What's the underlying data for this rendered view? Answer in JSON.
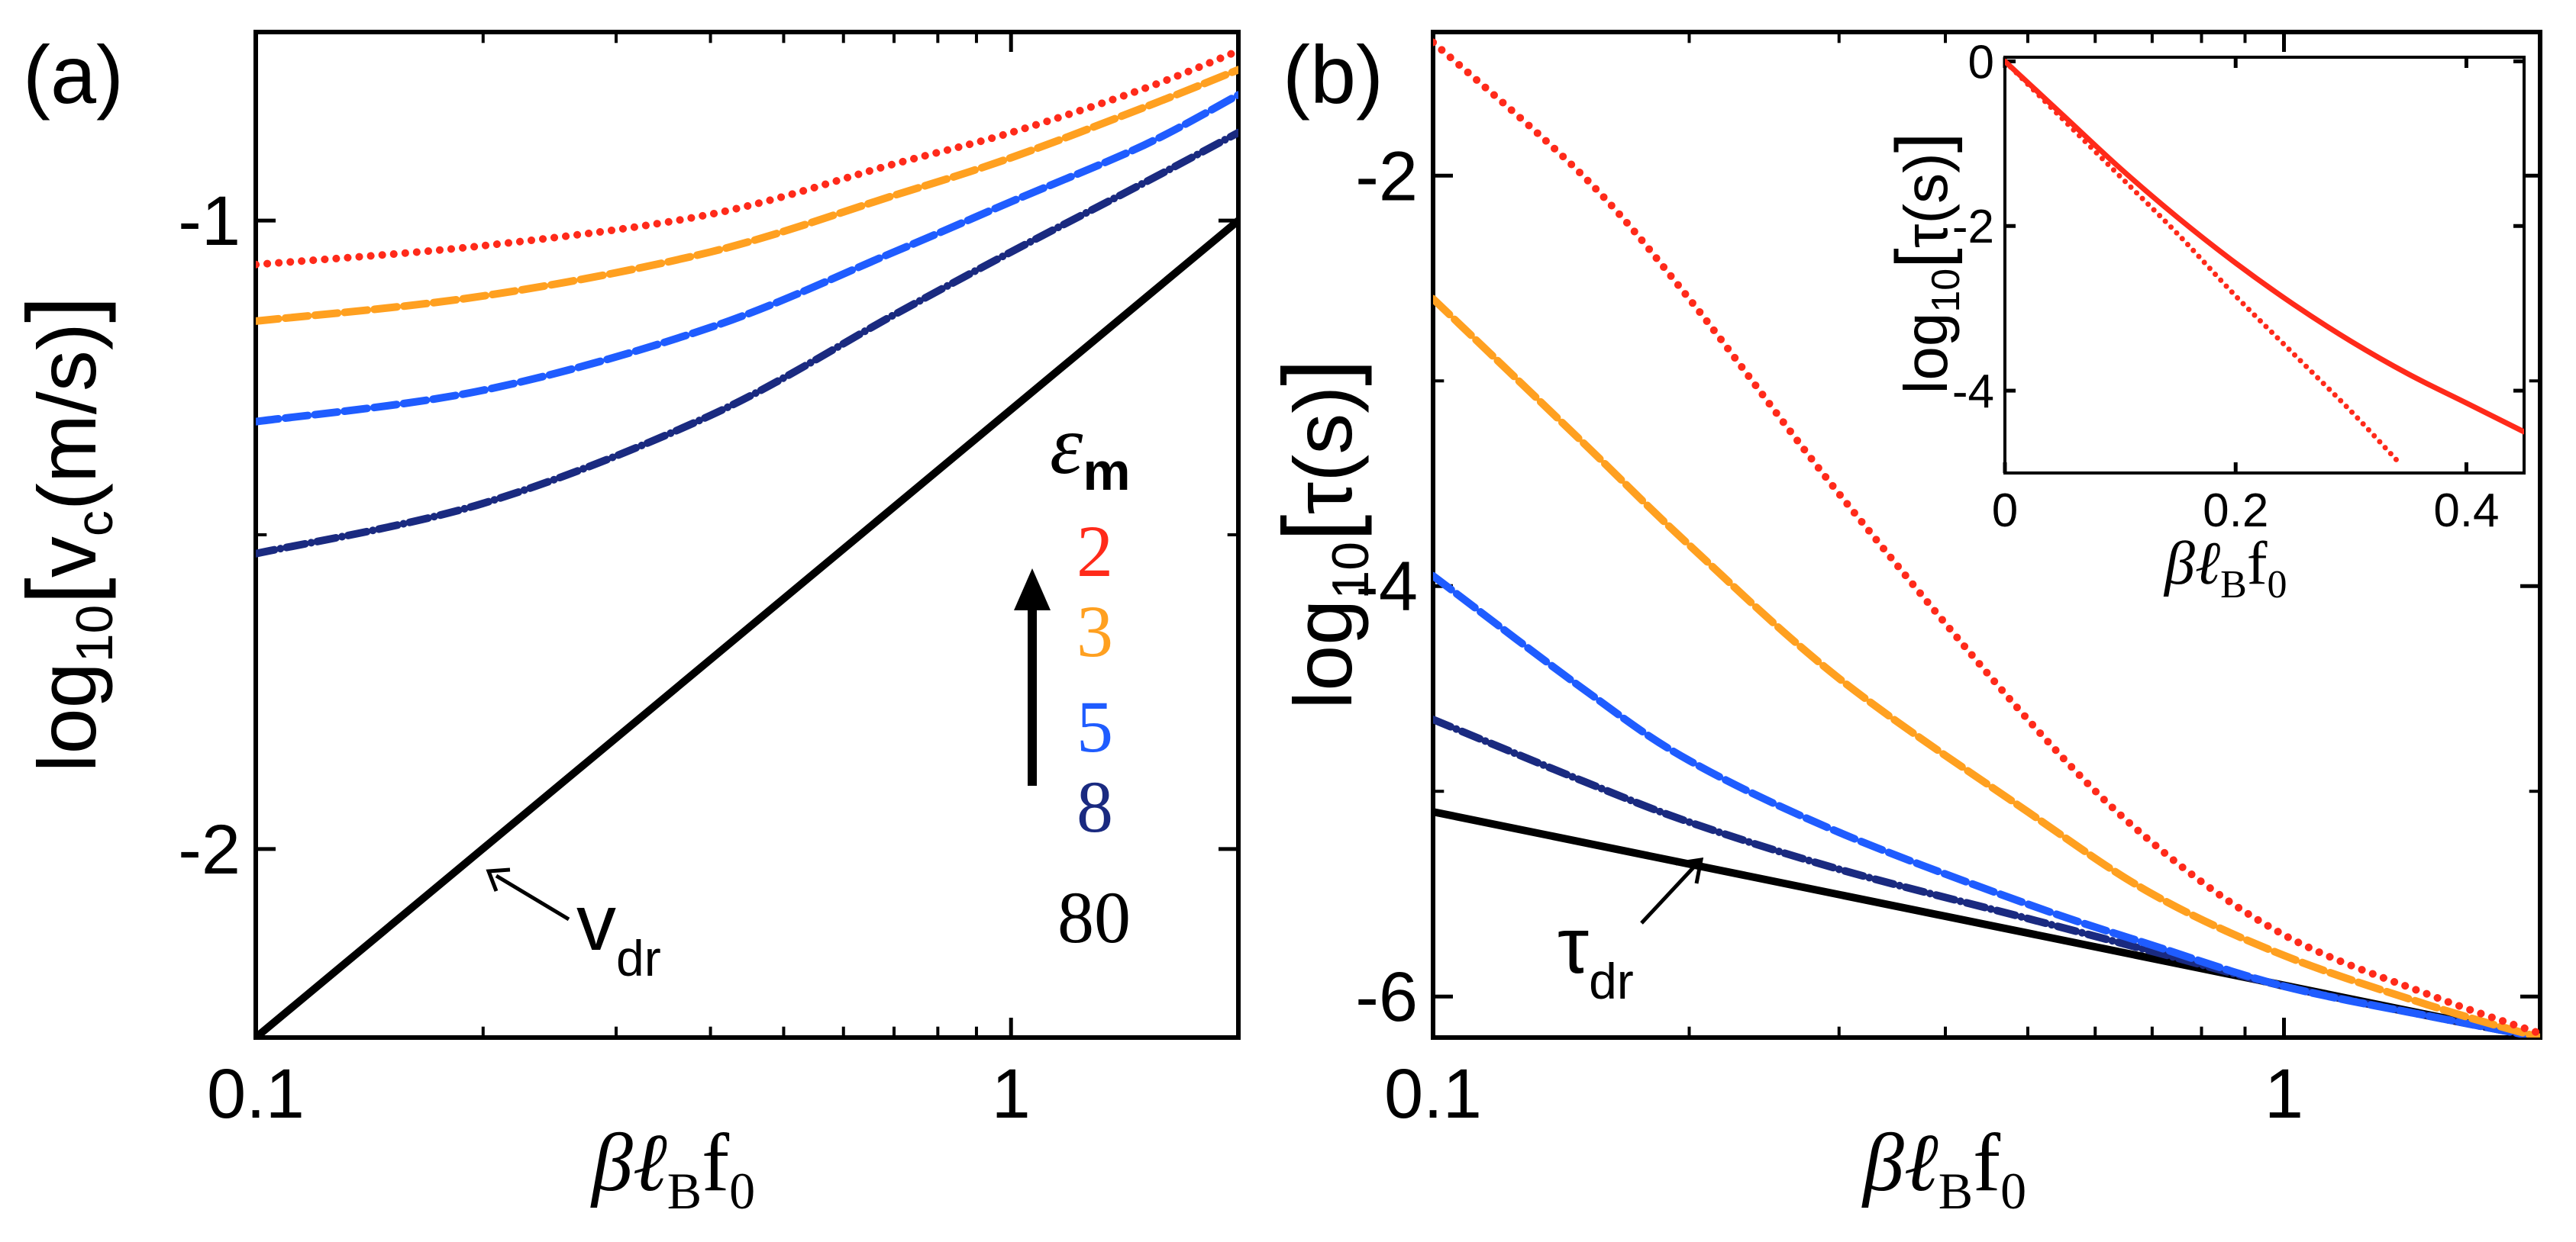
{
  "figure": {
    "panel_a": "(a)",
    "panel_b": "(b)",
    "xlabel_main": "βℓ",
    "xlabel_sub1": "B",
    "xlabel_tail": "f",
    "xlabel_sub2": "0",
    "legend": {
      "title_symbol": "ε",
      "title_sub": "m",
      "arrow_direction": "up",
      "entries": [
        {
          "label": "2",
          "color": "#ff2a1a"
        },
        {
          "label": "3",
          "color": "#ffa020"
        },
        {
          "label": "5",
          "color": "#1f5cff"
        },
        {
          "label": "8",
          "color": "#1a2a80"
        },
        {
          "label": "80",
          "color": "#000000"
        }
      ]
    },
    "annotation_a": {
      "main": "v",
      "sub": "dr"
    },
    "annotation_b": {
      "main": "τ",
      "sub": "dr"
    }
  },
  "chart_data": [
    {
      "id": "a",
      "type": "line",
      "title": "",
      "xscale": "log",
      "xlabel": "βℓBf0",
      "ylabel": "log10[vc(m/s)]",
      "ylabel_parts": {
        "pre": "log",
        "pre_sub": "10",
        "open": "[",
        "main": "v",
        "main_sub": "c",
        "tail": "(m/s)",
        "close": "]"
      },
      "xlim": [
        0.1,
        2.0
      ],
      "ylim": [
        -2.3,
        -0.7
      ],
      "xticks": [
        {
          "value": 0.1,
          "label": "0.1"
        },
        {
          "value": 1,
          "label": "1"
        }
      ],
      "yticks": [
        {
          "value": -2,
          "label": "-2"
        },
        {
          "value": -1,
          "label": "-1"
        }
      ],
      "yminor": [
        -1.5
      ],
      "series": [
        {
          "name": "2",
          "color": "#ff2a1a",
          "style": "dotted",
          "x": [
            0.1,
            0.2,
            0.4,
            0.7,
            1.0,
            1.5,
            2.0
          ],
          "y": [
            -1.07,
            -1.04,
            -0.99,
            -0.91,
            -0.86,
            -0.79,
            -0.73
          ]
        },
        {
          "name": "3",
          "color": "#ffa020",
          "style": "dashed",
          "x": [
            0.1,
            0.2,
            0.4,
            0.7,
            1.0,
            1.5,
            2.0
          ],
          "y": [
            -1.16,
            -1.12,
            -1.05,
            -0.96,
            -0.9,
            -0.82,
            -0.76
          ]
        },
        {
          "name": "5",
          "color": "#1f5cff",
          "style": "dashed",
          "x": [
            0.1,
            0.2,
            0.4,
            0.7,
            1.0,
            1.5,
            2.0
          ],
          "y": [
            -1.32,
            -1.27,
            -1.17,
            -1.05,
            -0.97,
            -0.88,
            -0.8
          ]
        },
        {
          "name": "8",
          "color": "#1a2a80",
          "style": "dashdot",
          "x": [
            0.1,
            0.2,
            0.4,
            0.7,
            1.0,
            1.5,
            2.0
          ],
          "y": [
            -1.53,
            -1.45,
            -1.31,
            -1.15,
            -1.05,
            -0.94,
            -0.86
          ]
        },
        {
          "name": "80",
          "color": "#000000",
          "style": "solid",
          "x": [
            0.1,
            2.0
          ],
          "y": [
            -2.3,
            -1.0
          ]
        }
      ]
    },
    {
      "id": "b",
      "type": "line",
      "title": "",
      "xscale": "log",
      "xlabel": "βℓBf0",
      "ylabel": "log10[τ(s)]",
      "ylabel_parts": {
        "pre": "log",
        "pre_sub": "10",
        "open": "[",
        "main": "τ",
        "main_sub": "",
        "tail": "(s)",
        "close": "]"
      },
      "xlim": [
        0.1,
        2.0
      ],
      "ylim": [
        -6.2,
        -1.3
      ],
      "xticks": [
        {
          "value": 0.1,
          "label": "0.1"
        },
        {
          "value": 1,
          "label": "1"
        }
      ],
      "yticks": [
        {
          "value": -6,
          "label": "-6"
        },
        {
          "value": -4,
          "label": "-4"
        },
        {
          "value": -2,
          "label": "-2"
        }
      ],
      "yminor": [
        -5,
        -3
      ],
      "series": [
        {
          "name": "2",
          "color": "#ff2a1a",
          "style": "dotted",
          "x": [
            0.1,
            0.15,
            0.2,
            0.3,
            0.5,
            0.7,
            1.0,
            1.5,
            2.0
          ],
          "y": [
            -1.35,
            -2.0,
            -2.6,
            -3.55,
            -4.65,
            -5.25,
            -5.7,
            -6.0,
            -6.18
          ]
        },
        {
          "name": "3",
          "color": "#ffa020",
          "style": "dashed",
          "x": [
            0.1,
            0.15,
            0.2,
            0.3,
            0.5,
            0.7,
            1.0,
            1.5,
            2.0
          ],
          "y": [
            -2.6,
            -3.3,
            -3.8,
            -4.45,
            -5.1,
            -5.5,
            -5.8,
            -6.05,
            -6.2
          ]
        },
        {
          "name": "5",
          "color": "#1f5cff",
          "style": "dashed",
          "x": [
            0.1,
            0.15,
            0.2,
            0.3,
            0.5,
            0.7,
            1.0,
            1.5,
            2.0
          ],
          "y": [
            -3.95,
            -4.5,
            -4.85,
            -5.2,
            -5.55,
            -5.75,
            -5.95,
            -6.1,
            -6.2
          ]
        },
        {
          "name": "8",
          "color": "#1a2a80",
          "style": "dashdot",
          "x": [
            0.1,
            0.15,
            0.2,
            0.3,
            0.5,
            0.7,
            1.0,
            1.5,
            2.0
          ],
          "y": [
            -4.65,
            -4.95,
            -5.15,
            -5.38,
            -5.62,
            -5.78,
            -5.95,
            -6.1,
            -6.2
          ]
        },
        {
          "name": "80",
          "color": "#000000",
          "style": "solid",
          "x": [
            0.1,
            2.0
          ],
          "y": [
            -5.1,
            -6.2
          ]
        }
      ]
    },
    {
      "id": "b-inset",
      "type": "line",
      "title": "",
      "xscale": "linear",
      "xlabel": "βℓBf0",
      "ylabel": "log10[τ(s)]",
      "xlim": [
        0.0,
        0.45
      ],
      "ylim": [
        -5.0,
        0.05
      ],
      "xticks": [
        {
          "value": 0,
          "label": "0"
        },
        {
          "value": 0.2,
          "label": "0.2"
        },
        {
          "value": 0.4,
          "label": "0.4"
        }
      ],
      "yticks": [
        {
          "value": 0,
          "label": "0"
        },
        {
          "value": -2,
          "label": "-2"
        },
        {
          "value": -4,
          "label": "-4"
        }
      ],
      "series": [
        {
          "name": "solid",
          "color": "#ff2a1a",
          "style": "solid",
          "x": [
            0,
            0.05,
            0.1,
            0.15,
            0.2,
            0.25,
            0.3,
            0.35,
            0.4,
            0.45
          ],
          "y": [
            0,
            -0.65,
            -1.3,
            -1.9,
            -2.45,
            -2.95,
            -3.4,
            -3.8,
            -4.15,
            -4.5
          ]
        },
        {
          "name": "dotted",
          "color": "#ff2a1a",
          "style": "dotted",
          "x": [
            0,
            0.05,
            0.1,
            0.15,
            0.2,
            0.25,
            0.3,
            0.34
          ],
          "y": [
            0,
            -0.7,
            -1.4,
            -2.1,
            -2.85,
            -3.55,
            -4.25,
            -4.85
          ]
        }
      ]
    }
  ]
}
